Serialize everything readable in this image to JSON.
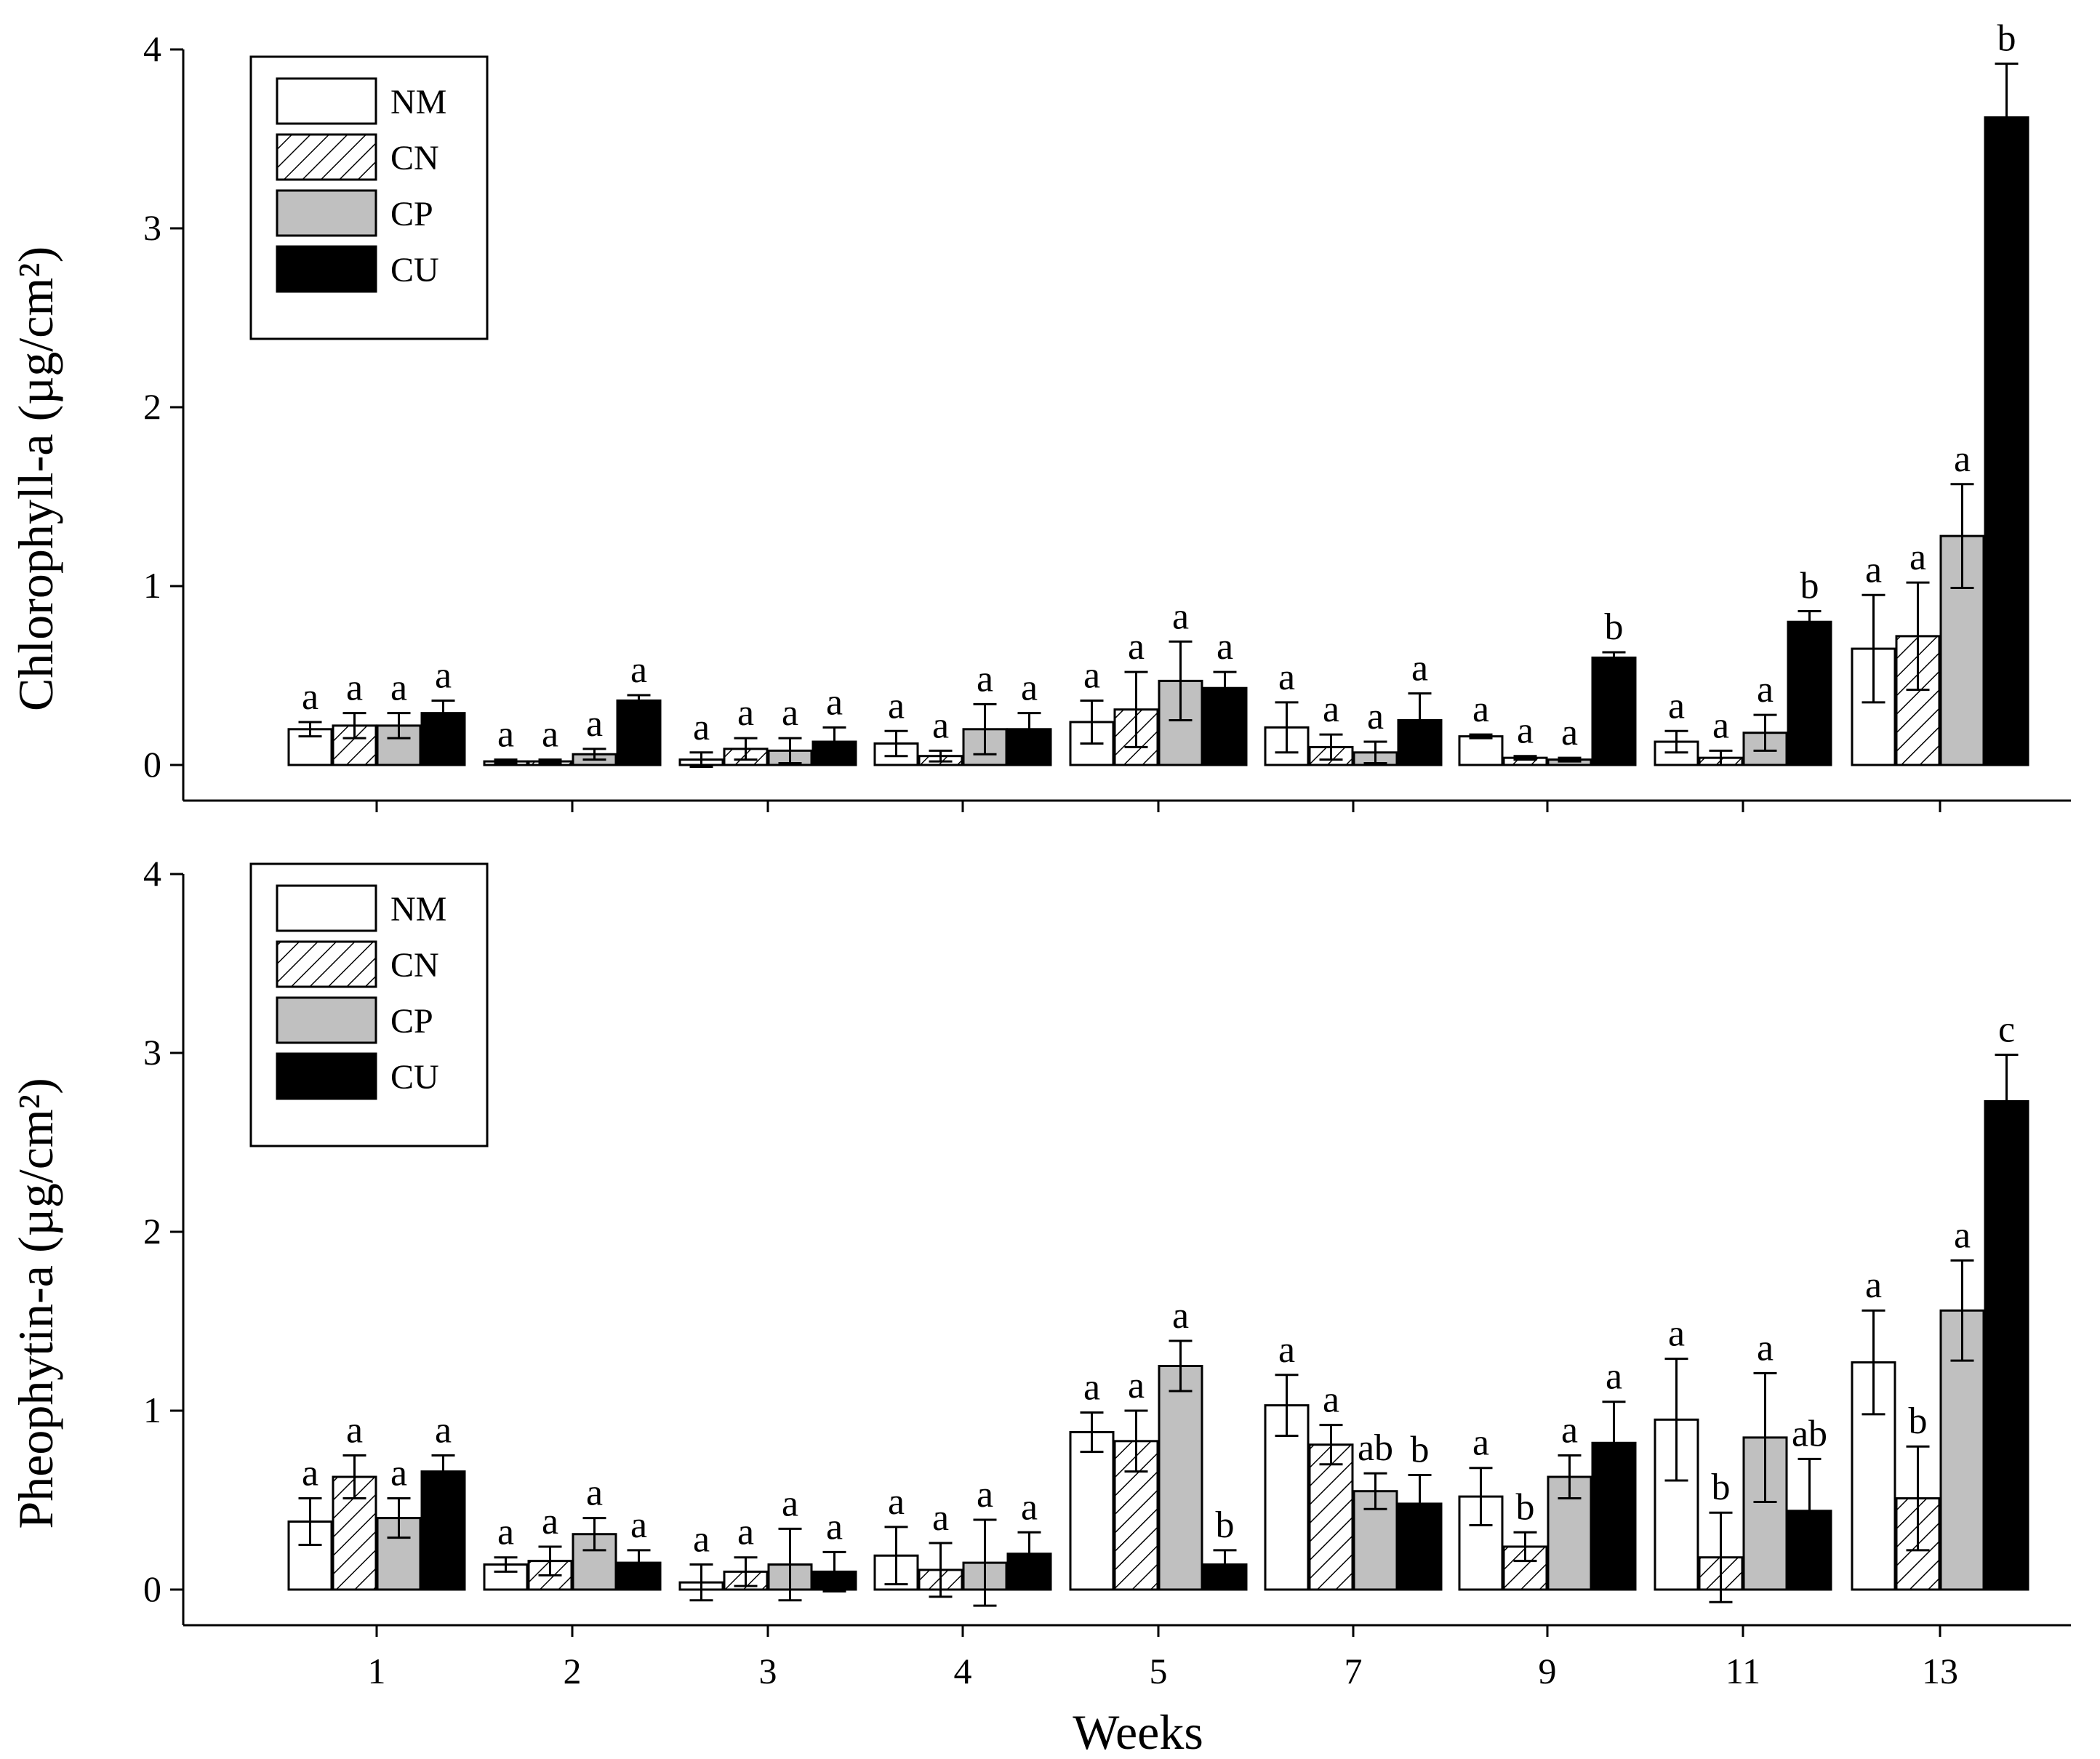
{
  "figure": {
    "xlabel": "Weeks"
  },
  "colors": {
    "NM": "#ffffff",
    "CN": "hatch",
    "CP": "#c0c0c0",
    "CU": "#000000",
    "axis": "#000000"
  },
  "legend": {
    "placement": "top-left",
    "items": [
      "NM",
      "CN",
      "CP",
      "CU"
    ]
  },
  "chart_data": [
    {
      "type": "bar",
      "ylabel": "Chlorophyll-a (µg/cm²)",
      "ylim": [
        -0.2,
        4
      ],
      "yticks": [
        0,
        1,
        2,
        3,
        4
      ],
      "categories": [
        "1",
        "2",
        "3",
        "4",
        "5",
        "7",
        "9",
        "11",
        "13"
      ],
      "series": [
        {
          "name": "NM",
          "values": [
            0.2,
            0.02,
            0.03,
            0.12,
            0.24,
            0.21,
            0.16,
            0.13,
            0.65
          ],
          "errors": [
            0.04,
            0.01,
            0.04,
            0.07,
            0.12,
            0.14,
            0.01,
            0.06,
            0.3
          ],
          "letters": [
            "a",
            "a",
            "a",
            "a",
            "a",
            "a",
            "a",
            "a",
            "a"
          ]
        },
        {
          "name": "CN",
          "values": [
            0.22,
            0.02,
            0.09,
            0.05,
            0.31,
            0.1,
            0.04,
            0.04,
            0.72
          ],
          "errors": [
            0.07,
            0.01,
            0.06,
            0.03,
            0.21,
            0.07,
            0.01,
            0.04,
            0.3
          ],
          "letters": [
            "a",
            "a",
            "a",
            "a",
            "a",
            "a",
            "a",
            "a",
            "a"
          ]
        },
        {
          "name": "CP",
          "values": [
            0.22,
            0.06,
            0.08,
            0.2,
            0.47,
            0.07,
            0.03,
            0.18,
            1.28
          ],
          "errors": [
            0.07,
            0.03,
            0.07,
            0.14,
            0.22,
            0.06,
            0.01,
            0.1,
            0.29
          ],
          "letters": [
            "a",
            "a",
            "a",
            "a",
            "a",
            "a",
            "a",
            "a",
            "a"
          ]
        },
        {
          "name": "CU",
          "values": [
            0.29,
            0.36,
            0.13,
            0.2,
            0.43,
            0.25,
            0.6,
            0.8,
            3.62
          ],
          "errors": [
            0.07,
            0.03,
            0.08,
            0.09,
            0.09,
            0.15,
            0.03,
            0.06,
            0.3
          ],
          "letters": [
            "a",
            "a",
            "a",
            "a",
            "a",
            "a",
            "b",
            "b",
            "b"
          ]
        }
      ]
    },
    {
      "type": "bar",
      "ylabel": "Pheophytin-a  (µg/cm²)",
      "ylim": [
        -0.2,
        4
      ],
      "yticks": [
        0,
        1,
        2,
        3,
        4
      ],
      "categories": [
        "1",
        "2",
        "3",
        "4",
        "5",
        "7",
        "9",
        "11",
        "13"
      ],
      "series": [
        {
          "name": "NM",
          "values": [
            0.38,
            0.14,
            0.04,
            0.19,
            0.88,
            1.03,
            0.52,
            0.95,
            1.27
          ],
          "errors": [
            0.13,
            0.04,
            0.1,
            0.16,
            0.11,
            0.17,
            0.16,
            0.34,
            0.29
          ],
          "letters": [
            "a",
            "a",
            "a",
            "a",
            "a",
            "a",
            "a",
            "a",
            "a"
          ]
        },
        {
          "name": "CN",
          "values": [
            0.63,
            0.16,
            0.1,
            0.11,
            0.83,
            0.81,
            0.24,
            0.18,
            0.51
          ],
          "errors": [
            0.12,
            0.08,
            0.08,
            0.15,
            0.17,
            0.11,
            0.08,
            0.25,
            0.29
          ],
          "letters": [
            "a",
            "a",
            "a",
            "a",
            "a",
            "a",
            "b",
            "b",
            "b"
          ]
        },
        {
          "name": "CP",
          "values": [
            0.4,
            0.31,
            0.14,
            0.15,
            1.25,
            0.55,
            0.63,
            0.85,
            1.56
          ],
          "errors": [
            0.11,
            0.09,
            0.2,
            0.24,
            0.14,
            0.1,
            0.12,
            0.36,
            0.28
          ],
          "letters": [
            "a",
            "a",
            "a",
            "a",
            "a",
            "ab",
            "a",
            "a",
            "a"
          ]
        },
        {
          "name": "CU",
          "values": [
            0.66,
            0.15,
            0.1,
            0.2,
            0.14,
            0.48,
            0.82,
            0.44,
            2.73
          ],
          "errors": [
            0.09,
            0.07,
            0.11,
            0.12,
            0.08,
            0.16,
            0.23,
            0.29,
            0.26
          ],
          "letters": [
            "a",
            "a",
            "a",
            "a",
            "b",
            "b",
            "a",
            "ab",
            "c"
          ]
        }
      ]
    }
  ]
}
